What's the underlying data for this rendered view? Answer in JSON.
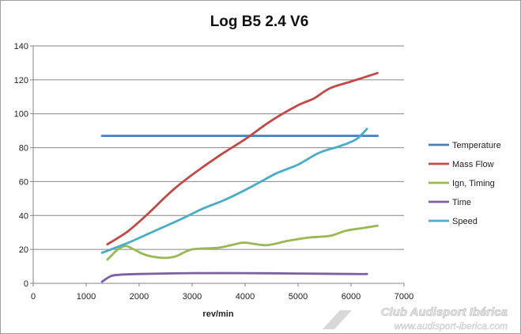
{
  "chart_data": {
    "type": "line",
    "title": "Log B5 2.4 V6",
    "xlabel": "rev/min",
    "ylabel": "",
    "xlim": [
      0,
      7000
    ],
    "ylim": [
      0,
      140
    ],
    "x_ticks": [
      0,
      1000,
      2000,
      3000,
      4000,
      5000,
      6000,
      7000
    ],
    "y_ticks": [
      0,
      20,
      40,
      60,
      80,
      100,
      120,
      140
    ],
    "grid": "horizontal",
    "legend_position": "right",
    "series": [
      {
        "name": "Temperature",
        "color": "#4a7ebb",
        "points": [
          [
            1300,
            87
          ],
          [
            6500,
            87
          ]
        ]
      },
      {
        "name": "Mass Flow",
        "color": "#be4b48",
        "points": [
          [
            1400,
            23
          ],
          [
            1800,
            31
          ],
          [
            2200,
            42
          ],
          [
            2600,
            54
          ],
          [
            3000,
            64
          ],
          [
            3500,
            75
          ],
          [
            4000,
            85
          ],
          [
            4500,
            96
          ],
          [
            5000,
            105
          ],
          [
            5300,
            109
          ],
          [
            5600,
            115
          ],
          [
            6000,
            119
          ],
          [
            6500,
            124
          ]
        ]
      },
      {
        "name": "Ign, Timing",
        "color": "#98b954",
        "points": [
          [
            1400,
            14
          ],
          [
            1600,
            20
          ],
          [
            1750,
            22
          ],
          [
            1900,
            20
          ],
          [
            2100,
            17
          ],
          [
            2300,
            15.5
          ],
          [
            2500,
            15
          ],
          [
            2700,
            16
          ],
          [
            3000,
            20
          ],
          [
            3500,
            21
          ],
          [
            3800,
            23
          ],
          [
            4000,
            24
          ],
          [
            4400,
            22.5
          ],
          [
            4800,
            25
          ],
          [
            5200,
            27
          ],
          [
            5600,
            28
          ],
          [
            5900,
            31
          ],
          [
            6200,
            32.5
          ],
          [
            6500,
            34
          ]
        ]
      },
      {
        "name": "Time",
        "color": "#7d60a0",
        "points": [
          [
            1300,
            1
          ],
          [
            1450,
            4
          ],
          [
            1600,
            5
          ],
          [
            2000,
            5.5
          ],
          [
            3000,
            6
          ],
          [
            4000,
            6
          ],
          [
            5000,
            5.8
          ],
          [
            6000,
            5.5
          ],
          [
            6300,
            5.5
          ]
        ]
      },
      {
        "name": "Speed",
        "color": "#4bacc6",
        "points": [
          [
            1300,
            18
          ],
          [
            1800,
            24
          ],
          [
            2300,
            31
          ],
          [
            2800,
            38
          ],
          [
            3200,
            44
          ],
          [
            3600,
            49
          ],
          [
            4000,
            55
          ],
          [
            4300,
            60
          ],
          [
            4600,
            65
          ],
          [
            5000,
            70
          ],
          [
            5400,
            77
          ],
          [
            5800,
            81
          ],
          [
            6100,
            85
          ],
          [
            6300,
            91
          ]
        ]
      }
    ]
  },
  "watermark": {
    "title": "Club Audisport Ibérica",
    "url": "www.audisport-iberica.com"
  }
}
